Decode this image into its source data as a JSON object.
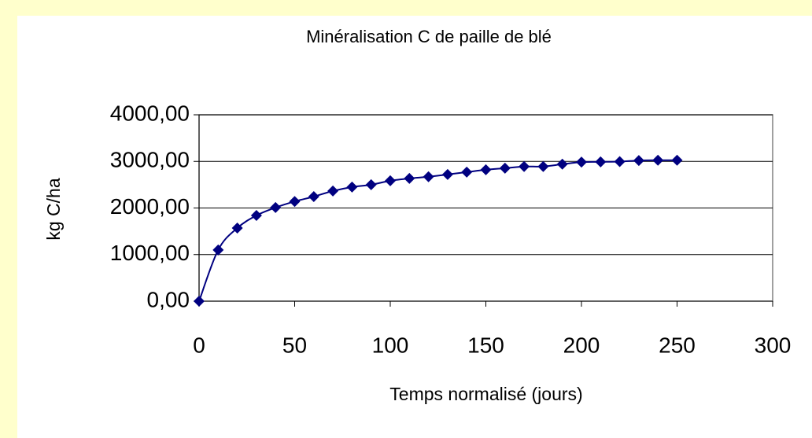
{
  "chart_data": {
    "type": "scatter",
    "title": "Minéralisation C de paille de blé",
    "x_label": "Temps normalisé (jours)",
    "y_label": "kg C/ha",
    "x": [
      0,
      10,
      20,
      30,
      40,
      50,
      60,
      70,
      80,
      90,
      100,
      110,
      120,
      130,
      140,
      150,
      160,
      170,
      180,
      190,
      200,
      210,
      220,
      230,
      240,
      250
    ],
    "series": [
      {
        "color": "#000080",
        "values": [
          0,
          1100,
          1570,
          1840,
          2010,
          2140,
          2245,
          2365,
          2450,
          2500,
          2585,
          2635,
          2670,
          2720,
          2770,
          2820,
          2855,
          2890,
          2890,
          2940,
          2985,
          2990,
          2995,
          3020,
          3025,
          3025
        ]
      }
    ],
    "xlim": [
      0,
      300
    ],
    "xticks": [
      0,
      50,
      100,
      150,
      200,
      250,
      300
    ],
    "ylim": [
      0,
      4000
    ],
    "yticks": [
      {
        "value": 0,
        "label": "0,00"
      },
      {
        "value": 1000,
        "label": "1000,00"
      },
      {
        "value": 2000,
        "label": "2000,00"
      },
      {
        "value": 3000,
        "label": "3000,00"
      },
      {
        "value": 4000,
        "label": "4000,00"
      }
    ],
    "grid": true,
    "smooth": true
  }
}
